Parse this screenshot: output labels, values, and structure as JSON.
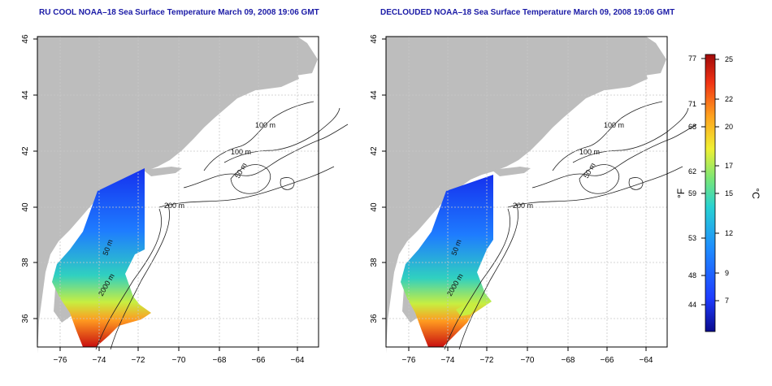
{
  "panels": [
    {
      "title": "RU COOL NOAA–18 Sea Surface Temperature March 09, 2008 19:06 GMT",
      "contour_labels": [
        "100 m",
        "100 m",
        "50 m",
        "200 m",
        "50 m",
        "2000 m"
      ]
    },
    {
      "title": "DECLOUDED NOAA–18 Sea Surface Temperature March 09, 2008 19:06 GMT",
      "contour_labels": [
        "100 m",
        "100 m",
        "50 m",
        "200 m",
        "50 m",
        "2000 m"
      ]
    }
  ],
  "axes": {
    "x_ticks": [
      "−76",
      "−74",
      "−72",
      "−70",
      "−68",
      "−66",
      "−64"
    ],
    "y_ticks": [
      "36",
      "38",
      "40",
      "42",
      "44",
      "46"
    ]
  },
  "colorbar": {
    "left_unit": "°F",
    "right_unit": "°C",
    "fahrenheit_ticks": [
      "77",
      "71",
      "68",
      "62",
      "59",
      "53",
      "48",
      "44"
    ],
    "celsius_ticks": [
      "25",
      "22",
      "20",
      "17",
      "15",
      "12",
      "9",
      "7"
    ],
    "colors": [
      "#0a0a8c",
      "#1e3cff",
      "#1e8cff",
      "#28d2d2",
      "#78e678",
      "#f0f032",
      "#ffa01e",
      "#f03214",
      "#a00a0a"
    ]
  },
  "colors": {
    "land": "#bdbdbd",
    "ocean": "#ffffff",
    "grid": "#c8c8c8",
    "contour": "#222222",
    "title": "#1a1aa6"
  }
}
